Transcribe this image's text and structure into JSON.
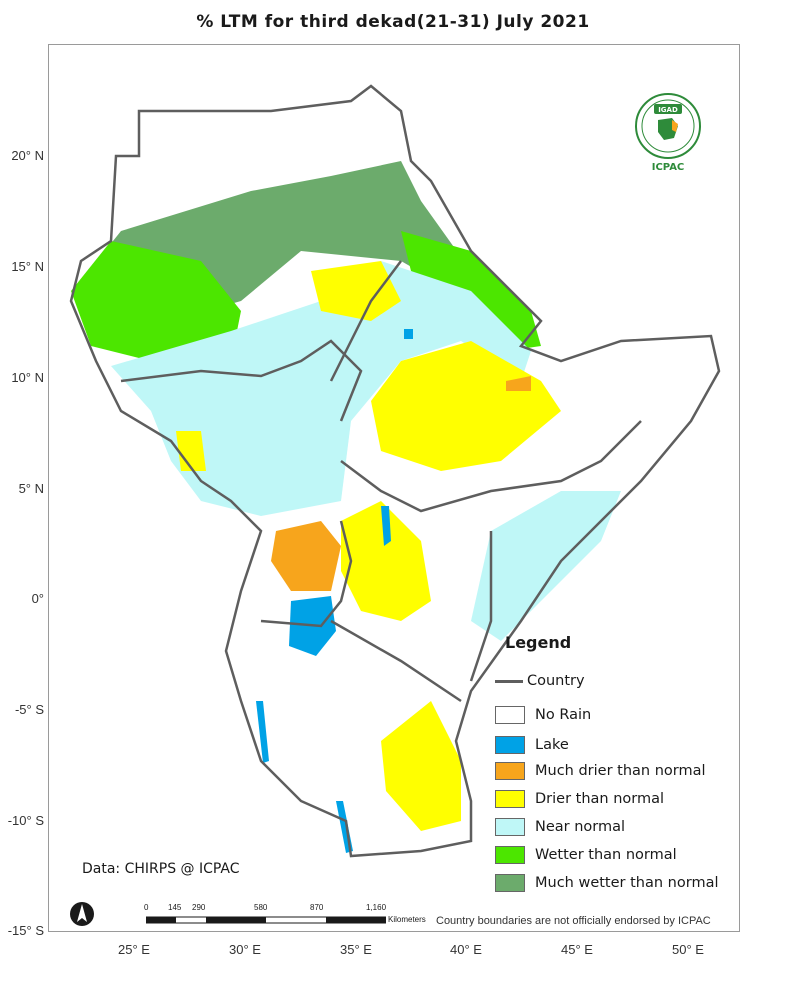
{
  "title": "% LTM for  third  dekad(21-31)  July 2021",
  "latitude_labels": [
    "20° N",
    "15° N",
    "10° N",
    "5° N",
    "0°",
    "-5° S",
    "-10° S",
    "-15° S"
  ],
  "longitude_labels": [
    "25° E",
    "30° E",
    "35° E",
    "40° E",
    "45° E",
    "50° E"
  ],
  "legend": {
    "title": "Legend",
    "country_label": "Country",
    "items": [
      {
        "label": "No Rain",
        "color": "#ffffff"
      },
      {
        "label": "Lake",
        "color": "#00a2e6"
      },
      {
        "label": "Much drier than normal",
        "color": "#f7a51c"
      },
      {
        "label": "Drier than normal",
        "color": "#ffff00"
      },
      {
        "label": "Near normal",
        "color": "#bff7f7"
      },
      {
        "label": "Wetter than normal",
        "color": "#4ce600"
      },
      {
        "label": "Much wetter than normal",
        "color": "#6cab6c"
      }
    ]
  },
  "data_source": "Data: CHIRPS @ ICPAC",
  "scalebar": {
    "ticks": [
      "0",
      "145",
      "290",
      "580",
      "870",
      "1,160"
    ],
    "unit": "Kilometers"
  },
  "disclaimer": "Country boundaries are not officially endorsed by ICPAC",
  "logo": {
    "top_text": "IGAD",
    "bottom_text": "ICPAC"
  },
  "north_arrow_icon": "north-arrow-icon"
}
